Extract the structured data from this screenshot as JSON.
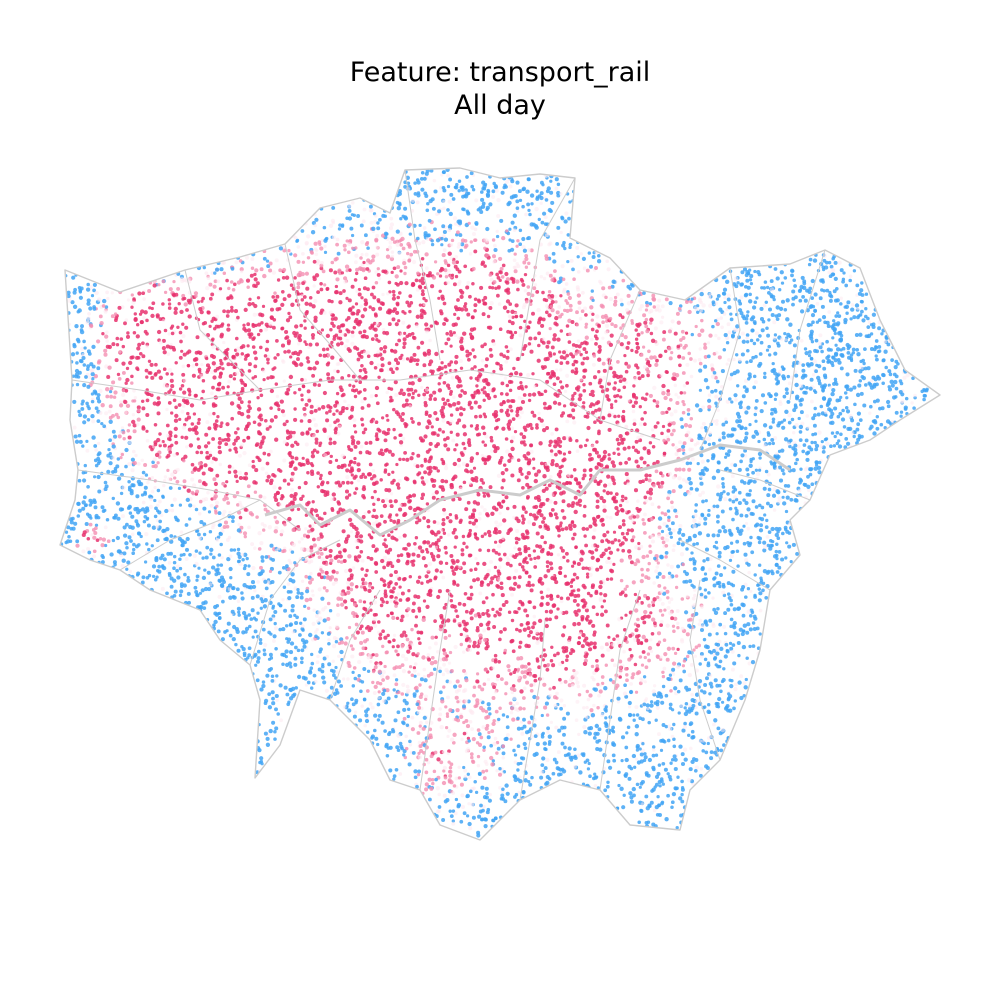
{
  "title": {
    "line1": "Feature: transport_rail",
    "line2": "All day"
  },
  "map": {
    "region": "Greater London",
    "boundary_color": "#cccccc",
    "colors": {
      "high": "#e8336f",
      "mid": "#f48fb1",
      "low": "#42a5f5",
      "neutral": "#fde7f0"
    }
  }
}
